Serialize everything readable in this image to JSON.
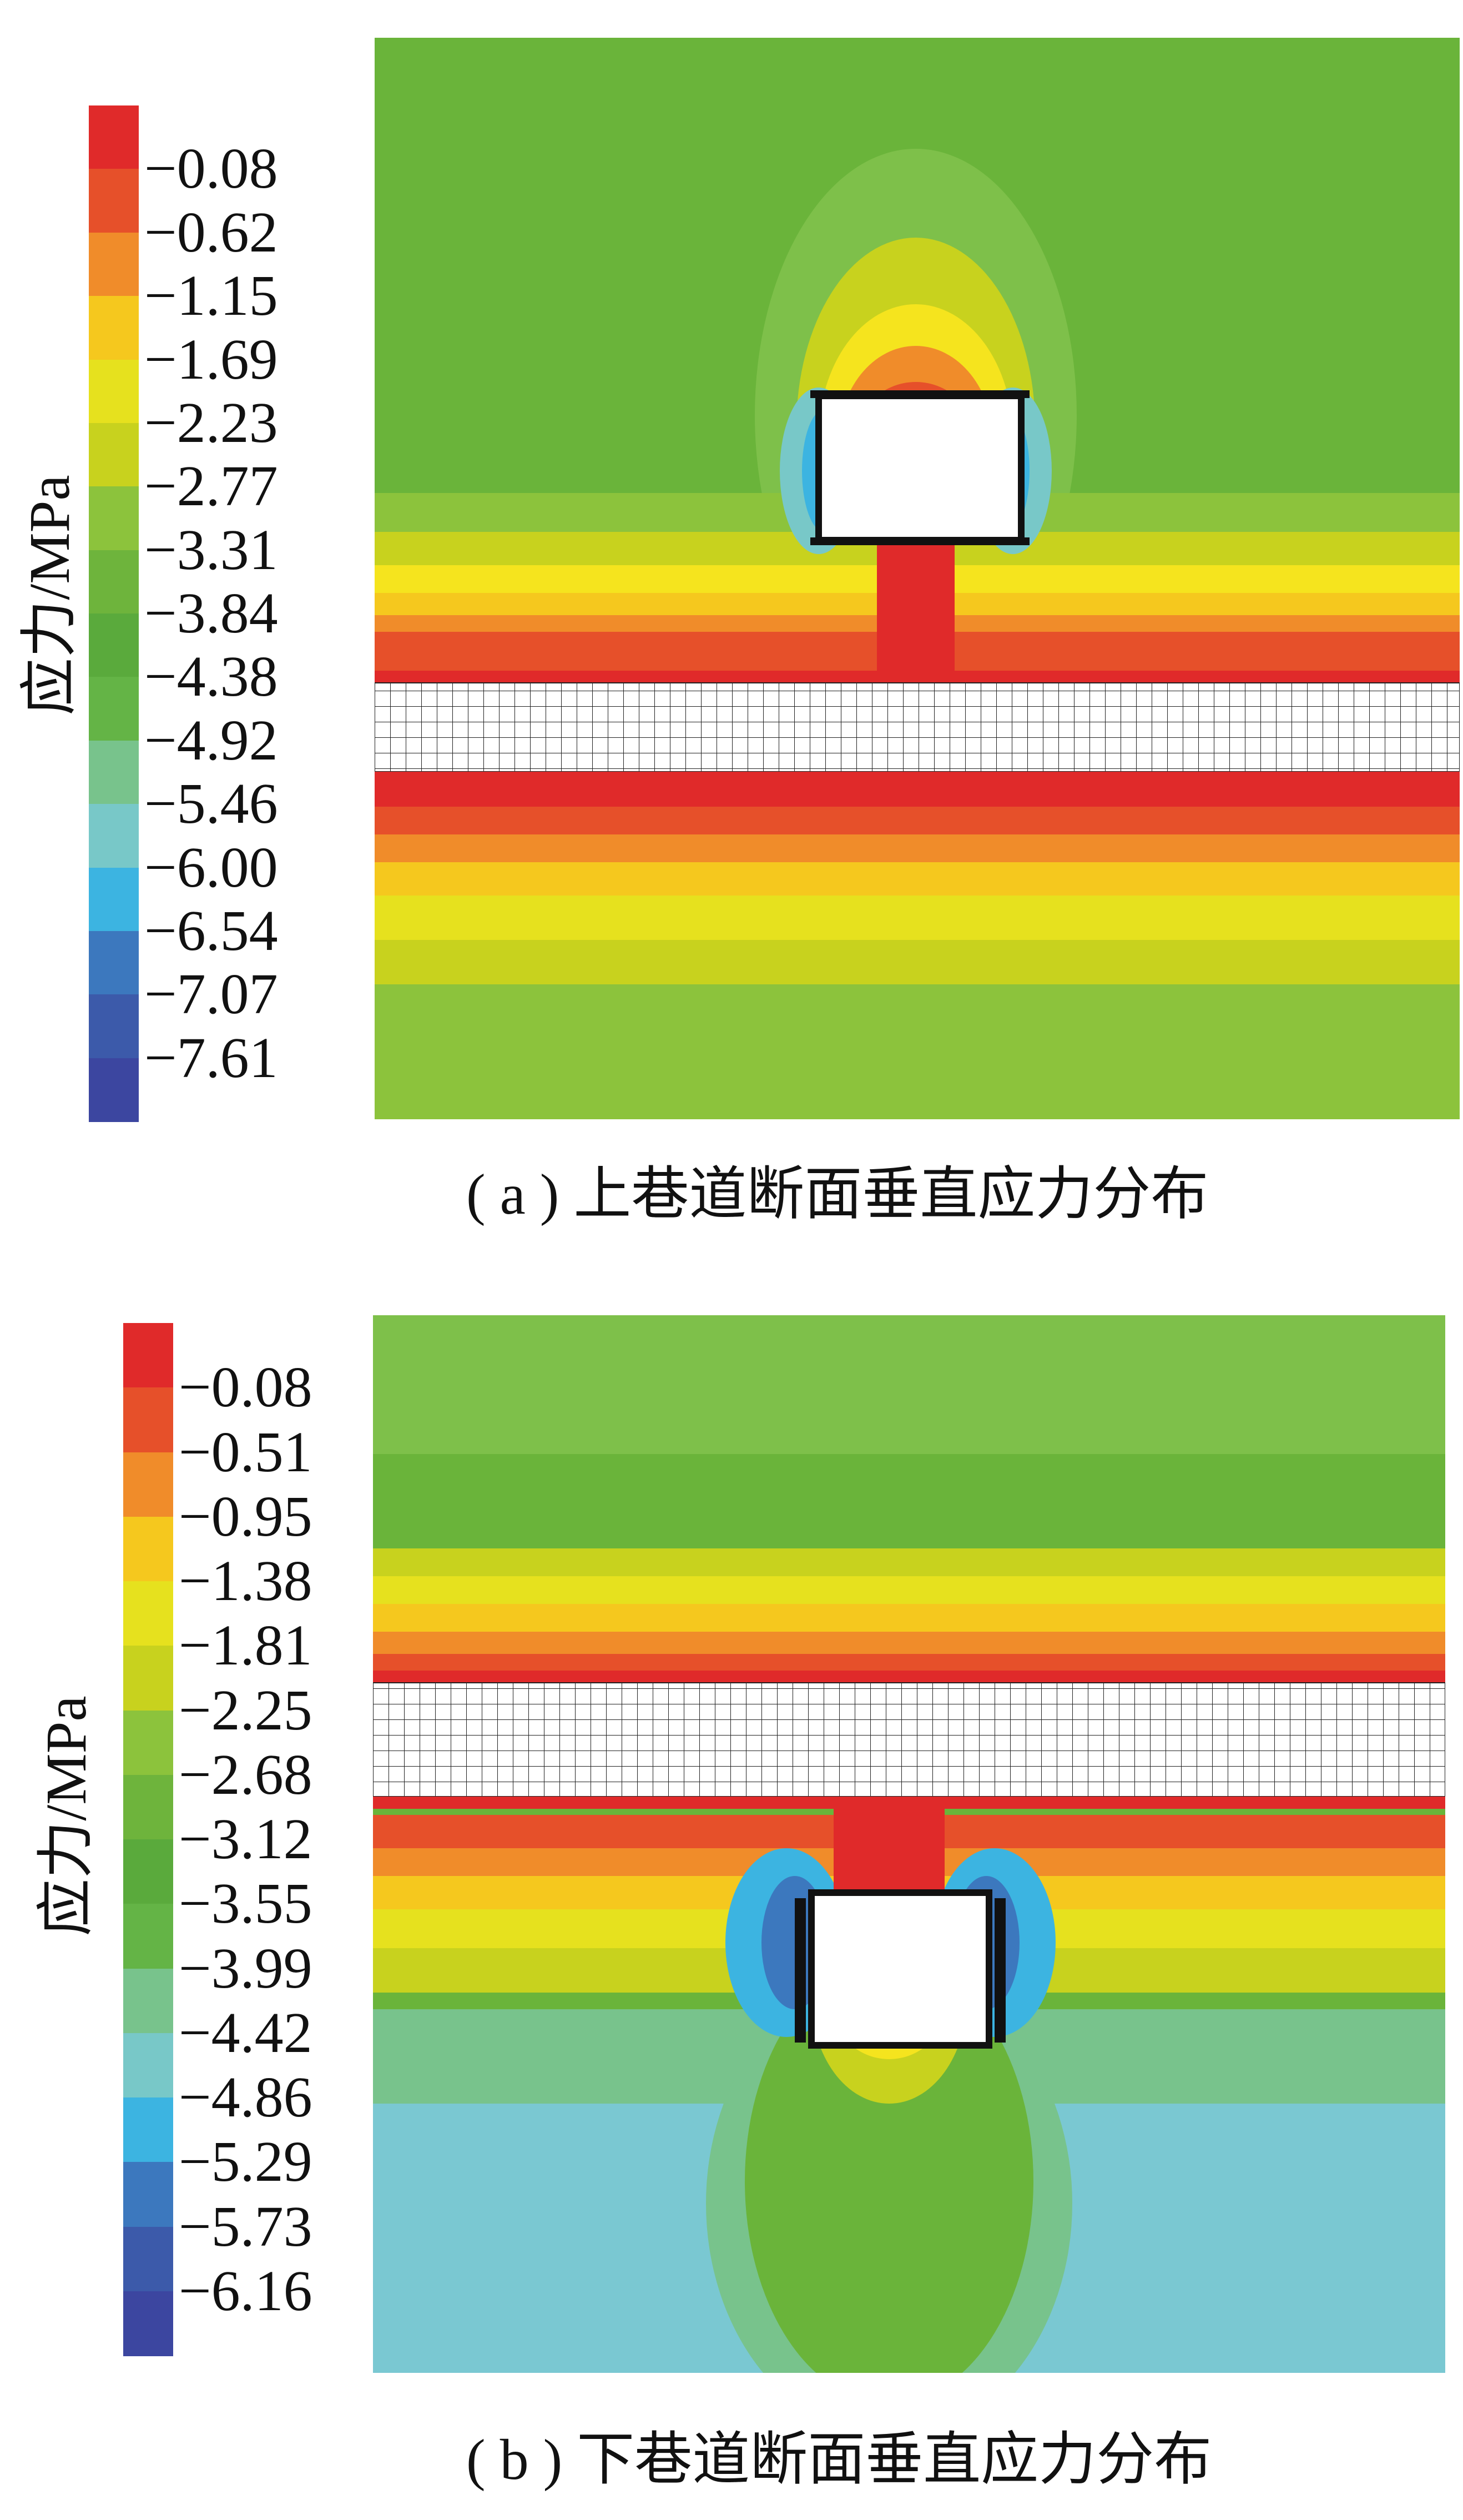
{
  "panels": [
    {
      "id": "a",
      "axis_title": "应力/MPa",
      "caption": "( a ) 上巷道断面垂直应力分布",
      "legend_labels": [
        "−0.08",
        "−0.62",
        "−1.15",
        "−1.69",
        "−2.23",
        "−2.77",
        "−3.31",
        "−3.84",
        "−4.38",
        "−4.92",
        "−5.46",
        "−6.00",
        "−6.54",
        "−7.07",
        "−7.61"
      ],
      "legend_colors": [
        "#e02a2a",
        "#e6502a",
        "#f08c2a",
        "#f5c81e",
        "#e6e11e",
        "#c8d21e",
        "#8cc33c",
        "#6eb43c",
        "#5aaa3c",
        "#64b446",
        "#78c38c",
        "#78c8c8",
        "#3cb4e1",
        "#3c78be",
        "#3c5aaa",
        "#3c46a0"
      ]
    },
    {
      "id": "b",
      "axis_title": "应力/MPa",
      "caption": "( b ) 下巷道断面垂直应力分布",
      "legend_labels": [
        "−0.08",
        "−0.51",
        "−0.95",
        "−1.38",
        "−1.81",
        "−2.25",
        "−2.68",
        "−3.12",
        "−3.55",
        "−3.99",
        "−4.42",
        "−4.86",
        "−5.29",
        "−5.73",
        "−6.16"
      ],
      "legend_colors": [
        "#e02a2a",
        "#e6502a",
        "#f08c2a",
        "#f5c81e",
        "#e6e11e",
        "#c8d21e",
        "#8cc33c",
        "#6eb43c",
        "#5aaa3c",
        "#64b446",
        "#78c38c",
        "#78c8c8",
        "#3cb4e1",
        "#3c78be",
        "#3c5aaa",
        "#3c46a0"
      ]
    }
  ]
}
